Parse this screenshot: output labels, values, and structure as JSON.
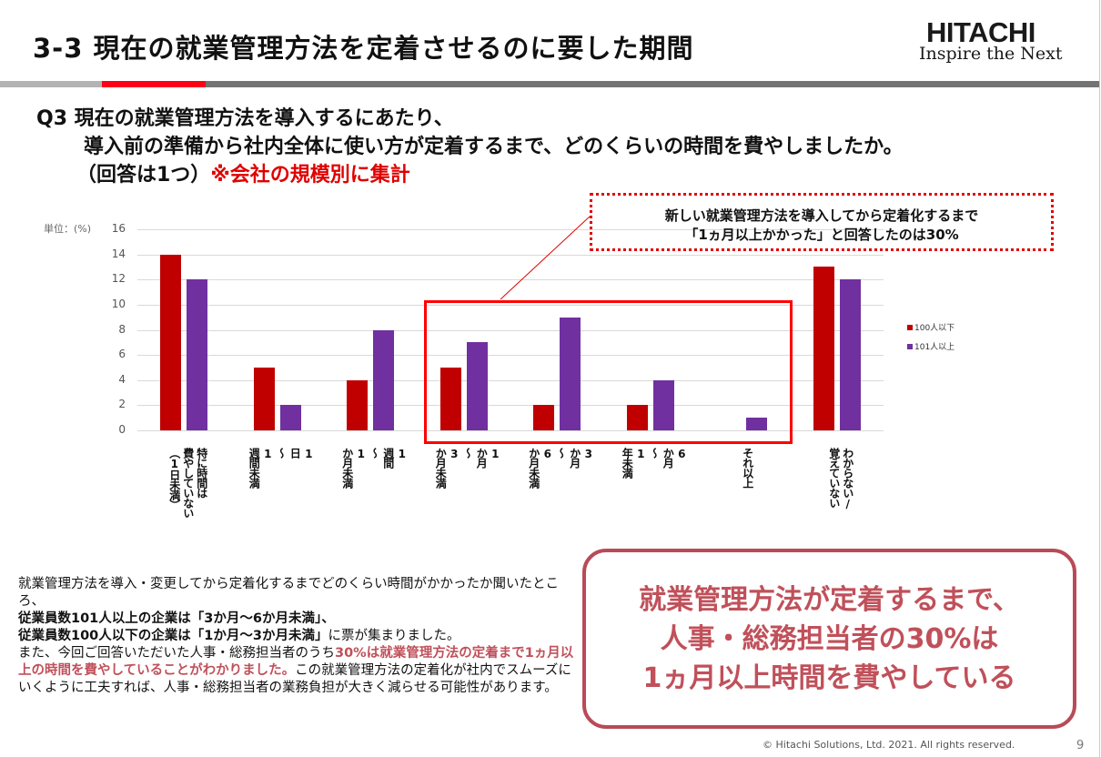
{
  "header": {
    "title": "3-3  現在の就業管理方法を定着させるのに要した期間",
    "logo_main": "HITACHI",
    "logo_tagline": "Inspire the Next"
  },
  "question": {
    "line1": "Q3  現在の就業管理方法を導入するにあたり、",
    "line2": "導入前の準備から社内全体に使い方が定着するまで、どのくらいの時間を費やしましたか。",
    "line3_black": "（回答は1つ）",
    "line3_red": "※会社の規模別に集計"
  },
  "colors": {
    "series_small": "#c00000",
    "series_large": "#7030a0",
    "accent_red": "#ff0000",
    "summary": "#c0505a"
  },
  "chart_data": {
    "type": "bar",
    "unit_label": "単位：(%)",
    "ylim": [
      0,
      16
    ],
    "yticks": [
      "0",
      "2",
      "4",
      "6",
      "8",
      "10",
      "12",
      "14",
      "16"
    ],
    "grid": true,
    "legend_position": "right",
    "categories": [
      "特に時間は\n費やしていない\n（1日未満）",
      "1\n日\n〜\n1\n週間未満",
      "1\n週間\n〜\n1\nか月未満",
      "1\nか月\n〜\n3\nか月未満",
      "3\nか月\n〜\n6\nか月未満",
      "6\nか月\n〜\n1\n年未満",
      "それ以上",
      "わからない/\n覚えていない"
    ],
    "series": [
      {
        "name": "100人以下",
        "values": [
          14,
          5,
          4,
          5,
          2,
          2,
          0,
          13
        ]
      },
      {
        "name": "101人以上",
        "values": [
          12,
          2,
          8,
          7,
          9,
          4,
          1,
          12
        ]
      }
    ]
  },
  "callout": {
    "line1": "新しい就業管理方法を導入してから定着化するまで",
    "line2": "「1ヵ月以上かかった」と回答したのは30%"
  },
  "body": {
    "p1": "就業管理方法を導入・変更してから定着化するまでどのくらい時間がかかったか聞いたところ、",
    "p2": "従業員数101人以上の企業は「3か月～6か月未満」、",
    "p3": "従業員数100人以下の企業は「1か月～3か月未満」",
    "p3b": "に票が集まりました。",
    "p4a": "また、今回ご回答いただいた人事・総務担当者のうち",
    "p4b": "30%は就業管理方法の定着まで1ヵ月以上の時間を費やしていることがわかりました。",
    "p4c": "この就業管理方法の定着化が社内でスムーズにいくように工夫すれば、人事・総務担当者の業務負担が大きく減らせる可能性があります。"
  },
  "summary": {
    "line1": "就業管理方法が定着するまで、",
    "line2": "人事・総務担当者の30%は",
    "line3": "1ヵ月以上時間を費やしている"
  },
  "footer": {
    "copyright": "© Hitachi Solutions, Ltd. 2021. All rights reserved.",
    "page": "9"
  }
}
